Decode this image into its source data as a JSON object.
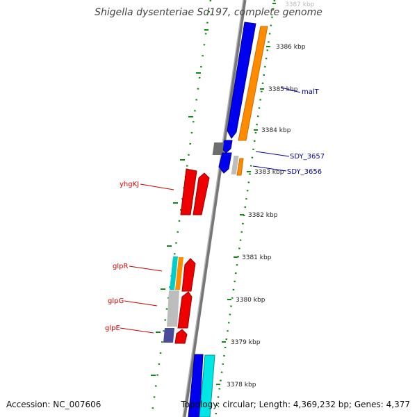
{
  "title": "Shigella dysenteriae Sd197, complete genome",
  "footer": {
    "accession": "Accession: NC_007606",
    "summary": "Topology: circular; Length: 4,369,232 bp; Genes: 4,377"
  },
  "colors": {
    "forward_cds": "#0000ee",
    "reverse_cds": "#ee0000",
    "orange_track": "#ff8c00",
    "cyan_track": "#00e5e5",
    "gray_gene": "#bdbdbd",
    "dark_gray_gene": "#6e6e6e",
    "purple_gene": "#4b4b9a",
    "tick_green": "#118811",
    "backbone": "#777777",
    "reverse_label": "#cc0000",
    "forward_label": "#000099"
  },
  "ticks": [
    {
      "label": "3387 kbp"
    },
    {
      "label": "3386 kbp"
    },
    {
      "label": "3385 kbp"
    },
    {
      "label": "3384 kbp"
    },
    {
      "label": "3383 kbp"
    },
    {
      "label": "3382 kbp"
    },
    {
      "label": "3381 kbp"
    },
    {
      "label": "3380 kbp"
    },
    {
      "label": "3379 kbp"
    },
    {
      "label": "3378 kbp"
    }
  ],
  "gene_labels": {
    "malT": "malT",
    "SDY_3657": "SDY_3657",
    "SDY_3656": "SDY_3656",
    "yhgKJ": "yhgKJ",
    "glpR": "glpR",
    "glpG": "glpG",
    "glpE": "glpE"
  }
}
